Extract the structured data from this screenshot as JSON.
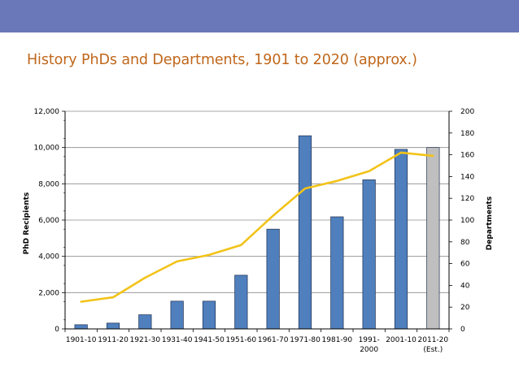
{
  "slide": {
    "title": "History PhDs and Departments, 1901 to 2020 (approx.)",
    "band_color": "#6a77b9",
    "title_color": "#c0671b"
  },
  "chart_data": {
    "type": "bar+line",
    "categories": [
      [
        "1901-10"
      ],
      [
        "1911-20"
      ],
      [
        "1921-30"
      ],
      [
        "1931-40"
      ],
      [
        "1941-50"
      ],
      [
        "1951-60"
      ],
      [
        "1961-70"
      ],
      [
        "1971-80"
      ],
      [
        "1981-90"
      ],
      [
        "1991-",
        "2000"
      ],
      [
        "2001-10"
      ],
      [
        "2011-20",
        "(Est.)"
      ]
    ],
    "series": [
      {
        "name": "PhD Recipients",
        "type": "bar",
        "axis": "left",
        "values": [
          230,
          320,
          780,
          1530,
          1530,
          2960,
          5500,
          10650,
          6180,
          8220,
          9900,
          10000
        ],
        "colors": [
          "#4f7fbd",
          "#4f7fbd",
          "#4f7fbd",
          "#4f7fbd",
          "#4f7fbd",
          "#4f7fbd",
          "#4f7fbd",
          "#4f7fbd",
          "#4f7fbd",
          "#4f7fbd",
          "#4f7fbd",
          "#bfbfbf"
        ]
      },
      {
        "name": "Departments",
        "type": "line",
        "axis": "right",
        "values": [
          25,
          29,
          47,
          62,
          68,
          77,
          104,
          129,
          136,
          145,
          162,
          159
        ],
        "color": "#f2c318"
      }
    ],
    "ylabel": "PhD Recipients",
    "y2label": "Departments",
    "ylim": [
      0,
      12000
    ],
    "y2lim": [
      0,
      200
    ],
    "yticks": [
      "0",
      "2,000",
      "4,000",
      "6,000",
      "8,000",
      "10,000",
      "12,000"
    ],
    "y2ticks": [
      "0",
      "20",
      "40",
      "60",
      "80",
      "100",
      "120",
      "140",
      "160",
      "180",
      "200"
    ],
    "grid": true
  }
}
